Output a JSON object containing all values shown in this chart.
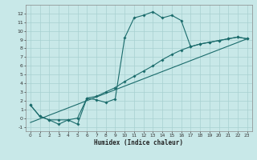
{
  "xlabel": "Humidex (Indice chaleur)",
  "bg_color": "#c8e8e8",
  "line_color": "#1a6b6b",
  "grid_color": "#a8d0d0",
  "xlim": [
    -0.5,
    23.5
  ],
  "ylim": [
    -1.5,
    13.0
  ],
  "xticks": [
    0,
    1,
    2,
    3,
    4,
    5,
    6,
    7,
    8,
    9,
    10,
    11,
    12,
    13,
    14,
    15,
    16,
    17,
    18,
    19,
    20,
    21,
    22,
    23
  ],
  "yticks": [
    -1,
    0,
    1,
    2,
    3,
    4,
    5,
    6,
    7,
    8,
    9,
    10,
    11,
    12
  ],
  "curve1_x": [
    0,
    1,
    2,
    3,
    4,
    5,
    6,
    7,
    8,
    9,
    10,
    11,
    12,
    13,
    14,
    15,
    16,
    17,
    18,
    19,
    20,
    21,
    22,
    23
  ],
  "curve1_y": [
    1.5,
    0.2,
    -0.2,
    -0.7,
    -0.2,
    -0.7,
    2.3,
    2.1,
    1.8,
    2.2,
    9.2,
    11.5,
    11.8,
    12.2,
    11.5,
    11.8,
    11.2,
    8.2,
    8.5,
    8.7,
    8.9,
    9.1,
    9.3,
    9.1
  ],
  "curve2_x": [
    0,
    1,
    2,
    3,
    4,
    5,
    6,
    7,
    8,
    9,
    10,
    11,
    12,
    13,
    14,
    15,
    16,
    17,
    18,
    19,
    20,
    21,
    22,
    23
  ],
  "curve2_y": [
    1.5,
    0.2,
    -0.2,
    -0.2,
    -0.2,
    0.0,
    2.3,
    2.5,
    3.0,
    3.5,
    4.2,
    4.8,
    5.4,
    6.0,
    6.7,
    7.3,
    7.8,
    8.2,
    8.5,
    8.7,
    8.9,
    9.1,
    9.3,
    9.1
  ],
  "curve3_x": [
    0,
    23
  ],
  "curve3_y": [
    -0.5,
    9.1
  ]
}
